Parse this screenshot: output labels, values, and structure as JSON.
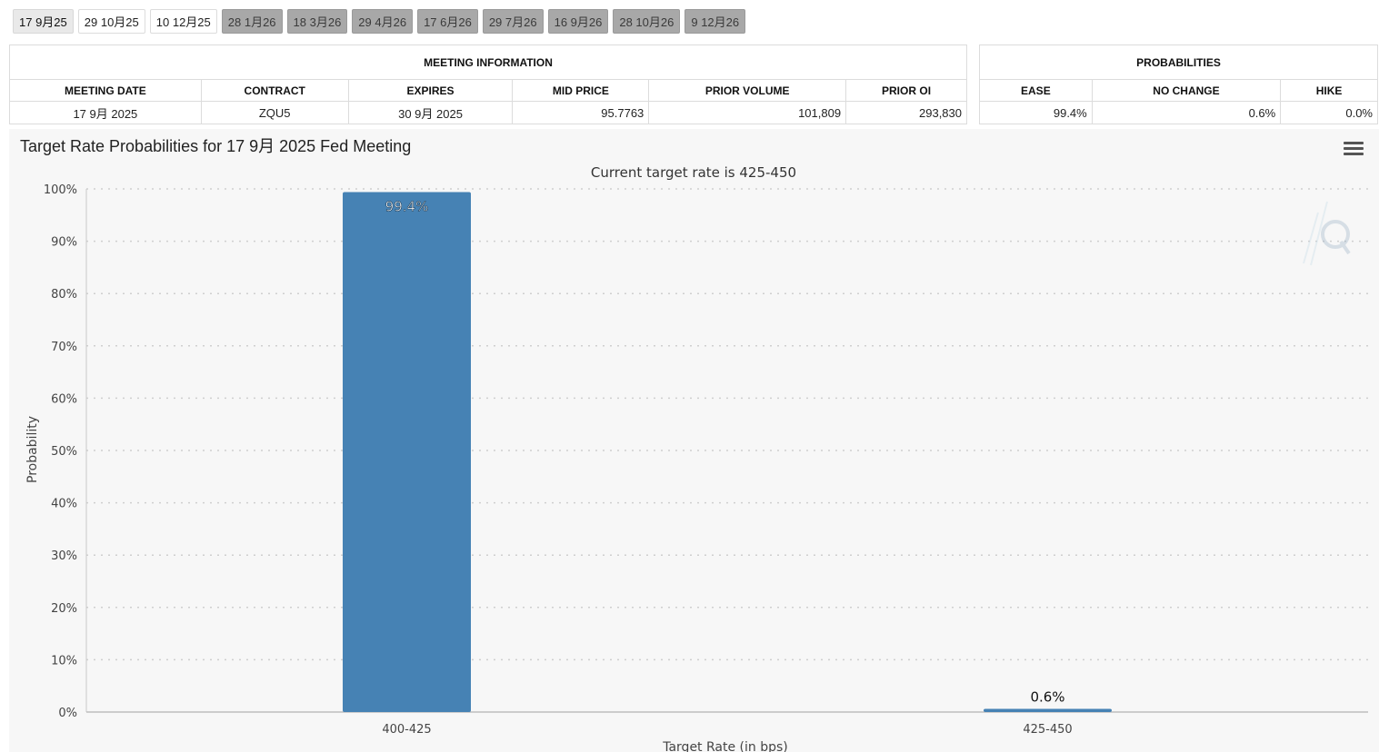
{
  "tabs": [
    {
      "label": "17 9月25",
      "state": "selected"
    },
    {
      "label": "29 10月25",
      "state": "light"
    },
    {
      "label": "10 12月25",
      "state": "light"
    },
    {
      "label": "28 1月26",
      "state": "dark"
    },
    {
      "label": "18 3月26",
      "state": "dark"
    },
    {
      "label": "29 4月26",
      "state": "dark"
    },
    {
      "label": "17 6月26",
      "state": "dark"
    },
    {
      "label": "29 7月26",
      "state": "dark"
    },
    {
      "label": "16 9月26",
      "state": "dark"
    },
    {
      "label": "28 10月26",
      "state": "dark"
    },
    {
      "label": "9 12月26",
      "state": "dark"
    }
  ],
  "meeting_info": {
    "title": "MEETING INFORMATION",
    "headers": [
      "MEETING DATE",
      "CONTRACT",
      "EXPIRES",
      "MID PRICE",
      "PRIOR VOLUME",
      "PRIOR OI"
    ],
    "row": [
      "17 9月 2025",
      "ZQU5",
      "30 9月 2025",
      "95.7763",
      "101,809",
      "293,830"
    ]
  },
  "probabilities": {
    "title": "PROBABILITIES",
    "headers": [
      "EASE",
      "NO CHANGE",
      "HIKE"
    ],
    "row": [
      "99.4%",
      "0.6%",
      "0.0%"
    ]
  },
  "chart_data": {
    "type": "bar",
    "title": "Target Rate Probabilities for 17 9月 2025 Fed Meeting",
    "subtitle": "Current target rate is 425-450",
    "xlabel": "Target Rate (in bps)",
    "ylabel": "Probability",
    "categories": [
      "400-425",
      "425-450"
    ],
    "values": [
      99.4,
      0.6
    ],
    "data_labels": [
      "99.4%",
      "0.6%"
    ],
    "ylim": [
      0,
      100
    ],
    "yticks": [
      "0%",
      "10%",
      "20%",
      "30%",
      "40%",
      "50%",
      "60%",
      "70%",
      "80%",
      "90%",
      "100%"
    ],
    "grid": true,
    "bar_color": "#4682b4"
  },
  "icons": {
    "menu": "hamburger-menu-icon",
    "watermark": "q-logo-icon"
  }
}
